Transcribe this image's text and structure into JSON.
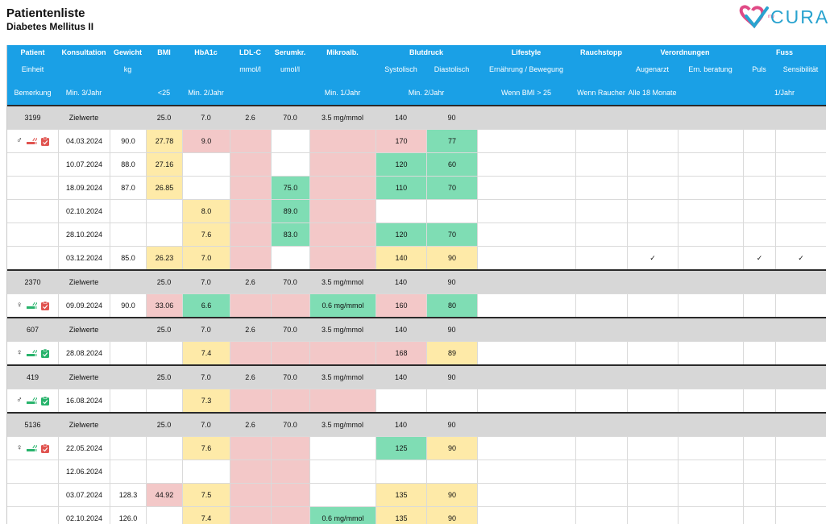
{
  "page": {
    "title": "Patientenliste",
    "subtitle": "Diabetes Mellitus II",
    "logo": {
      "my": "my",
      "name": "CURA"
    }
  },
  "colors": {
    "header": "#1aa0e6",
    "pink": "#f3c8c8",
    "yellow": "#feeaa8",
    "green": "#7fddb4",
    "zielwerte_row": "#d7d7d7",
    "icon_red": "#e0534f",
    "icon_green": "#27b36b"
  },
  "header": {
    "row1": [
      "Patient",
      "Konsultation",
      "Gewicht",
      "BMI",
      "HbA1c",
      "LDL-C",
      "Serumkr.",
      "Mikroalb.",
      "Blutdruck",
      "Lifestyle",
      "Rauchstopp",
      "Verordnungen",
      "Fuss"
    ],
    "row2": [
      "Einheit",
      "",
      "kg",
      "",
      "",
      "mmol/l",
      "umol/l",
      "",
      "Systolisch",
      "Diastolisch",
      "Ernährung / Bewegung",
      "",
      "Augenarzt",
      "Ern. beratung",
      "Puls",
      "Sensibilität"
    ],
    "row3": [
      "Bemerkung",
      "Min. 3/Jahr",
      "",
      "<25",
      "Min. 2/Jahr",
      "",
      "",
      "Min. 1/Jahr",
      "Min. 2/Jahr",
      "Wenn BMI > 25",
      "Wenn Raucher",
      "Alle 18 Monate",
      "1/Jahr"
    ]
  },
  "patients": [
    {
      "id": "3199",
      "sex": "male",
      "sex_symbol": "♂",
      "smoking_icon": "red",
      "clipboard_icon": "red",
      "targets": {
        "label": "Zielwerte",
        "bmi": "25.0",
        "hba1c": "7.0",
        "ldl": "2.6",
        "serum": "70.0",
        "mikro": "3.5 mg/mmol",
        "sys": "140",
        "dia": "90"
      },
      "visits": [
        {
          "date": "04.03.2024",
          "weight": "90.0",
          "bmi": "27.78",
          "hba1c": "9.0",
          "serum": "",
          "mikro": "",
          "sys": "170",
          "dia": "77",
          "c": {
            "bmi": "yellow",
            "hba1c": "pink",
            "ldl": "pink",
            "serum": "",
            "mikro": "pink",
            "sys": "pink",
            "dia": "green"
          }
        },
        {
          "date": "10.07.2024",
          "weight": "88.0",
          "bmi": "27.16",
          "hba1c": "",
          "serum": "",
          "mikro": "",
          "sys": "120",
          "dia": "60",
          "c": {
            "bmi": "yellow",
            "hba1c": "",
            "ldl": "pink",
            "serum": "",
            "mikro": "pink",
            "sys": "green",
            "dia": "green"
          }
        },
        {
          "date": "18.09.2024",
          "weight": "87.0",
          "bmi": "26.85",
          "hba1c": "",
          "serum": "75.0",
          "mikro": "",
          "sys": "110",
          "dia": "70",
          "c": {
            "bmi": "yellow",
            "hba1c": "",
            "ldl": "pink",
            "serum": "green",
            "mikro": "pink",
            "sys": "green",
            "dia": "green"
          }
        },
        {
          "date": "02.10.2024",
          "weight": "",
          "bmi": "",
          "hba1c": "8.0",
          "serum": "89.0",
          "mikro": "",
          "sys": "",
          "dia": "",
          "c": {
            "bmi": "",
            "hba1c": "yellow",
            "ldl": "pink",
            "serum": "green",
            "mikro": "pink",
            "sys": "",
            "dia": ""
          }
        },
        {
          "date": "28.10.2024",
          "weight": "",
          "bmi": "",
          "hba1c": "7.6",
          "serum": "83.0",
          "mikro": "",
          "sys": "120",
          "dia": "70",
          "c": {
            "bmi": "",
            "hba1c": "yellow",
            "ldl": "pink",
            "serum": "green",
            "mikro": "pink",
            "sys": "green",
            "dia": "green"
          }
        },
        {
          "date": "03.12.2024",
          "weight": "85.0",
          "bmi": "26.23",
          "hba1c": "7.0",
          "serum": "",
          "mikro": "",
          "sys": "140",
          "dia": "90",
          "augenarzt": "✓",
          "puls": "✓",
          "sens": "✓",
          "c": {
            "bmi": "yellow",
            "hba1c": "yellow",
            "ldl": "pink",
            "serum": "",
            "mikro": "pink",
            "sys": "yellow",
            "dia": "yellow"
          }
        }
      ]
    },
    {
      "id": "2370",
      "sex": "female",
      "sex_symbol": "♀",
      "smoking_icon": "green",
      "clipboard_icon": "red",
      "targets": {
        "label": "Zielwerte",
        "bmi": "25.0",
        "hba1c": "7.0",
        "ldl": "2.6",
        "serum": "70.0",
        "mikro": "3.5 mg/mmol",
        "sys": "140",
        "dia": "90"
      },
      "visits": [
        {
          "date": "09.09.2024",
          "weight": "90.0",
          "bmi": "33.06",
          "hba1c": "6.6",
          "serum": "",
          "mikro": "0.6 mg/mmol",
          "sys": "160",
          "dia": "80",
          "c": {
            "bmi": "pink",
            "hba1c": "green",
            "ldl": "pink",
            "serum": "pink",
            "mikro": "green",
            "sys": "pink",
            "dia": "green"
          }
        }
      ]
    },
    {
      "id": "607",
      "sex": "female",
      "sex_symbol": "♀",
      "smoking_icon": "green",
      "clipboard_icon": "green",
      "targets": {
        "label": "Zielwerte",
        "bmi": "25.0",
        "hba1c": "7.0",
        "ldl": "2.6",
        "serum": "70.0",
        "mikro": "3.5 mg/mmol",
        "sys": "140",
        "dia": "90"
      },
      "visits": [
        {
          "date": "28.08.2024",
          "weight": "",
          "bmi": "",
          "hba1c": "7.4",
          "serum": "",
          "mikro": "",
          "sys": "168",
          "dia": "89",
          "c": {
            "bmi": "",
            "hba1c": "yellow",
            "ldl": "pink",
            "serum": "pink",
            "mikro": "pink",
            "sys": "pink",
            "dia": "yellow"
          }
        }
      ]
    },
    {
      "id": "419",
      "sex": "male",
      "sex_symbol": "♂",
      "smoking_icon": "green",
      "clipboard_icon": "green",
      "targets": {
        "label": "Zielwerte",
        "bmi": "25.0",
        "hba1c": "7.0",
        "ldl": "2.6",
        "serum": "70.0",
        "mikro": "3.5 mg/mmol",
        "sys": "140",
        "dia": "90"
      },
      "visits": [
        {
          "date": "16.08.2024",
          "weight": "",
          "bmi": "",
          "hba1c": "7.3",
          "serum": "",
          "mikro": "",
          "sys": "",
          "dia": "",
          "c": {
            "bmi": "",
            "hba1c": "yellow",
            "ldl": "pink",
            "serum": "pink",
            "mikro": "pink",
            "sys": "",
            "dia": ""
          }
        }
      ]
    },
    {
      "id": "5136",
      "sex": "female",
      "sex_symbol": "♀",
      "smoking_icon": "green",
      "clipboard_icon": "red",
      "targets": {
        "label": "Zielwerte",
        "bmi": "25.0",
        "hba1c": "7.0",
        "ldl": "2.6",
        "serum": "70.0",
        "mikro": "3.5 mg/mmol",
        "sys": "140",
        "dia": "90"
      },
      "visits": [
        {
          "date": "22.05.2024",
          "weight": "",
          "bmi": "",
          "hba1c": "7.6",
          "serum": "",
          "mikro": "",
          "sys": "125",
          "dia": "90",
          "c": {
            "bmi": "",
            "hba1c": "yellow",
            "ldl": "pink",
            "serum": "pink",
            "mikro": "",
            "sys": "green",
            "dia": "yellow"
          }
        },
        {
          "date": "12.06.2024",
          "weight": "",
          "bmi": "",
          "hba1c": "",
          "serum": "",
          "mikro": "",
          "sys": "",
          "dia": "",
          "c": {
            "bmi": "",
            "hba1c": "",
            "ldl": "pink",
            "serum": "pink",
            "mikro": "",
            "sys": "",
            "dia": ""
          }
        },
        {
          "date": "03.07.2024",
          "weight": "128.3",
          "bmi": "44.92",
          "hba1c": "7.5",
          "serum": "",
          "mikro": "",
          "sys": "135",
          "dia": "90",
          "c": {
            "bmi": "pink",
            "hba1c": "yellow",
            "ldl": "pink",
            "serum": "pink",
            "mikro": "",
            "sys": "yellow",
            "dia": "yellow"
          }
        },
        {
          "date": "02.10.2024",
          "weight": "126.0",
          "bmi": "",
          "hba1c": "7.4",
          "serum": "",
          "mikro": "0.6 mg/mmol",
          "sys": "135",
          "dia": "90",
          "c": {
            "bmi": "",
            "hba1c": "yellow",
            "ldl": "pink",
            "serum": "pink",
            "mikro": "green",
            "sys": "yellow",
            "dia": "yellow"
          }
        }
      ]
    }
  ]
}
